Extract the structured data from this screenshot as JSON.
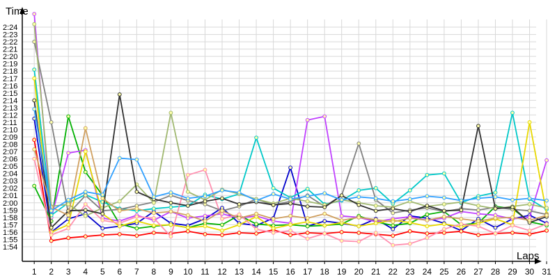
{
  "chart_data": {
    "type": "line",
    "xlabel": "Laps",
    "ylabel": "Time",
    "x": [
      1,
      2,
      3,
      4,
      5,
      6,
      7,
      8,
      9,
      10,
      11,
      12,
      13,
      14,
      15,
      16,
      17,
      18,
      19,
      20,
      21,
      22,
      23,
      24,
      25,
      26,
      27,
      28,
      29,
      30,
      31
    ],
    "x_tick_labels": [
      "1",
      "2",
      "3",
      "4",
      "5",
      "6",
      "7",
      "8",
      "9",
      "10",
      "11",
      "12",
      "13",
      "14",
      "15",
      "16",
      "17",
      "18",
      "19",
      "20",
      "21",
      "22",
      "23",
      "24",
      "25",
      "26",
      "27",
      "28",
      "29",
      "30",
      "31"
    ],
    "y_tick_labels": [
      "1:54",
      "1:55",
      "1:56",
      "1:57",
      "1:58",
      "1:59",
      "2:00",
      "2:01",
      "2:02",
      "2:03",
      "2:04",
      "2:05",
      "2:06",
      "2:07",
      "2:08",
      "2:09",
      "2:10",
      "2:11",
      "2:12",
      "2:13",
      "2:14",
      "2:15",
      "2:16",
      "2:17",
      "2:18",
      "2:19",
      "2:20",
      "2:21",
      "2:22",
      "2:23",
      "2:24"
    ],
    "y_unit": "seconds",
    "ylim": [
      112,
      146
    ],
    "xlim": [
      0.3,
      31.2
    ],
    "grid": true,
    "legend": "none",
    "series": [
      {
        "color": "#0000cc",
        "values": [
          131.5,
          116.0,
          117.8,
          118.5,
          116.5,
          116.8,
          117.2,
          118.8,
          117.2,
          116.9,
          117.8,
          119.3,
          117.2,
          116.9,
          117.9,
          124.8,
          116.8,
          117.5,
          117.2,
          116.8,
          117.8,
          116.4,
          118.2,
          117.9,
          117.2,
          116.2,
          117.8,
          116.6,
          117.8,
          118.3,
          117.2
        ]
      },
      {
        "color": "#ff0000",
        "values": [
          128.6,
          114.8,
          115.2,
          115.4,
          115.6,
          115.7,
          115.5,
          115.9,
          115.8,
          116.1,
          115.7,
          115.6,
          115.9,
          115.8,
          116.3,
          115.6,
          115.9,
          115.8,
          116.0,
          115.9,
          115.7,
          115.5,
          116.1,
          115.8,
          115.9,
          116.1,
          115.6,
          115.8,
          115.9,
          115.7,
          116.2
        ]
      },
      {
        "color": "#00b000",
        "values": [
          122.3,
          117.5,
          131.8,
          124.2,
          121.0,
          117.1,
          116.5,
          116.8,
          117.0,
          116.6,
          117.2,
          117.0,
          118.3,
          117.1,
          116.9,
          117.0,
          116.8,
          116.9,
          117.1,
          118.2,
          117.4,
          116.9,
          117.2,
          118.4,
          118.8,
          117.0,
          117.2,
          119.5,
          119.2,
          117.4,
          116.9
        ]
      },
      {
        "color": "#c040ff",
        "values": [
          145.8,
          118.0,
          126.8,
          127.2,
          117.9,
          117.5,
          118.3,
          117.6,
          118.8,
          117.9,
          118.2,
          118.5,
          117.9,
          118.2,
          117.5,
          117.2,
          131.3,
          131.8,
          118.2,
          118.0,
          117.4,
          117.8,
          118.1,
          117.6,
          117.9,
          118.8,
          118.5,
          118.3,
          117.8,
          118.0,
          125.8
        ]
      },
      {
        "color": "#00c8c8",
        "values": [
          138.2,
          118.3,
          120.0,
          121.1,
          120.1,
          119.2,
          118.9,
          119.2,
          119.4,
          119.6,
          121.1,
          120.5,
          121.2,
          128.9,
          122.0,
          120.7,
          121.9,
          119.8,
          120.3,
          121.7,
          122.0,
          119.9,
          121.7,
          123.8,
          124.0,
          120.0,
          120.9,
          121.4,
          132.3,
          120.5,
          119.1
        ]
      },
      {
        "color": "#e8d800",
        "values": [
          137.0,
          116.0,
          117.0,
          127.0,
          118.5,
          116.8,
          117.5,
          116.9,
          117.0,
          116.6,
          116.8,
          116.2,
          117.0,
          118.1,
          116.5,
          117.0,
          117.4,
          116.9,
          117.3,
          116.8,
          117.2,
          117.6,
          117.3,
          116.8,
          117.1,
          116.7,
          117.2,
          117.8,
          117.0,
          131.0,
          118.5
        ]
      },
      {
        "color": "#ff90b0",
        "values": [
          126.0,
          115.6,
          116.5,
          119.8,
          117.6,
          117.2,
          118.1,
          117.9,
          115.4,
          123.8,
          124.5,
          117.8,
          118.4,
          116.4,
          115.9,
          116.2,
          115.1,
          115.8,
          114.8,
          114.7,
          115.9,
          114.2,
          114.4,
          115.2,
          116.4,
          117.1,
          116.8,
          115.8,
          116.9,
          116.2,
          117.1
        ]
      },
      {
        "color": "#808080",
        "values": [
          142.0,
          131.0,
          118.5,
          121.0,
          118.9,
          119.1,
          119.6,
          120.1,
          121.0,
          120.3,
          119.8,
          118.9,
          119.5,
          120.5,
          119.7,
          120.2,
          121.0,
          119.5,
          121.0,
          128.1,
          120.4,
          118.6,
          119.0,
          119.3,
          118.8,
          119.2,
          119.0,
          119.4,
          119.1,
          118.9,
          118.4
        ]
      },
      {
        "color": "#a0b870",
        "values": [
          144.4,
          119.5,
          119.8,
          118.2,
          119.3,
          120.2,
          122.5,
          120.0,
          132.3,
          121.5,
          120.4,
          121.8,
          121.2,
          120.5,
          119.9,
          120.6,
          120.2,
          119.7,
          120.4,
          120.0,
          119.6,
          119.4,
          120.2,
          119.5,
          119.8,
          120.1,
          119.6,
          119.2,
          119.5,
          119.8,
          119.3
        ]
      },
      {
        "color": "#303030",
        "values": [
          134.0,
          116.6,
          118.9,
          119.0,
          118.5,
          134.8,
          121.5,
          120.5,
          120.0,
          119.6,
          120.2,
          120.6,
          119.8,
          120.1,
          119.7,
          119.9,
          119.5,
          119.4,
          121.0,
          119.7,
          118.9,
          119.2,
          118.8,
          119.6,
          118.9,
          119.0,
          130.5,
          119.2,
          119.4,
          117.3,
          118.1
        ]
      },
      {
        "color": "#d0a060",
        "values": [
          127.3,
          119.4,
          118.3,
          130.2,
          120.6,
          118.9,
          119.2,
          118.6,
          118.8,
          118.3,
          117.5,
          118.9,
          117.9,
          118.5,
          117.8,
          118.2,
          117.9,
          118.5,
          117.6,
          118.0,
          117.7,
          117.4,
          117.9,
          117.6,
          118.1,
          117.8,
          117.5,
          117.9,
          118.0,
          117.6,
          118.3
        ]
      },
      {
        "color": "#30a0ff",
        "values": [
          132.8,
          118.9,
          120.4,
          121.5,
          121.1,
          126.1,
          125.9,
          120.8,
          121.4,
          120.6,
          120.9,
          121.7,
          121.4,
          120.3,
          121.2,
          120.5,
          120.9,
          121.3,
          120.4,
          120.8,
          120.6,
          120.2,
          120.5,
          120.9,
          120.7,
          120.3,
          120.6,
          120.8,
          120.4,
          120.6,
          120.3
        ]
      }
    ]
  }
}
